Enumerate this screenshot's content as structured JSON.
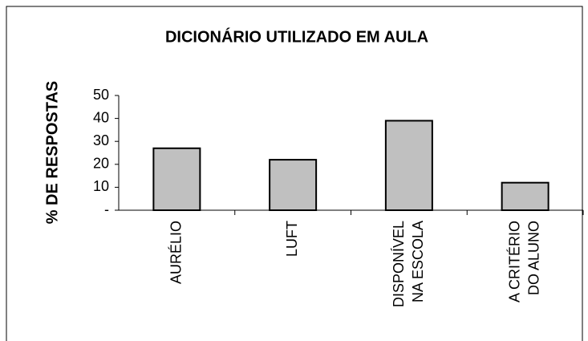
{
  "chart_data": {
    "type": "bar",
    "title": "DICIONÁRIO UTILIZADO EM AULA",
    "y_label": "% DE RESPOSTAS",
    "categories": [
      "AURÉLIO",
      "LUFT",
      "DISPONÍVEL\nNA ESCOLA",
      "A CRITÉRIO\nDO ALUNO"
    ],
    "values": [
      27,
      22,
      39,
      12
    ],
    "color": "#c0c0c0",
    "ylim": [
      0,
      50
    ],
    "yticks": [
      {
        "value": 0,
        "label": "-"
      },
      10,
      20,
      30,
      40,
      50
    ],
    "grid": false
  }
}
